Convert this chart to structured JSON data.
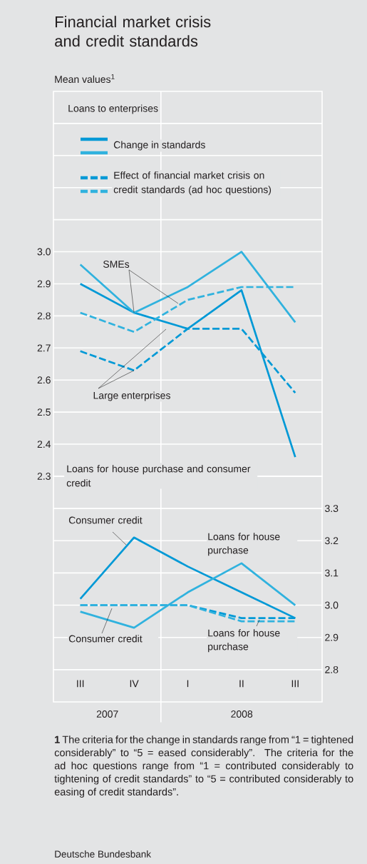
{
  "chart_data": [
    {
      "type": "line",
      "title": "Financial market crisis and credit standards",
      "ylabel": "Mean values$^{1}$",
      "subtitle": "Loans to enterprises",
      "categories": [
        "III",
        "IV",
        "I",
        "II",
        "III"
      ],
      "series": [
        {
          "name": "Change in standards",
          "color": "#0099d6",
          "line_style": "solid",
          "values": [
            2.9,
            2.81,
            2.76,
            2.88,
            2.36
          ]
        },
        {
          "color": "#30b2de",
          "line_style": "solid",
          "values": [
            2.96,
            2.81,
            2.89,
            3.0,
            2.78
          ]
        },
        {
          "name": "Effect of financial market crisis on credit standards (ad hoc questions)",
          "color": "#0099d6",
          "line_style": "dashed",
          "values": [
            2.69,
            2.63,
            2.76,
            2.76,
            2.56
          ]
        },
        {
          "color": "#30b2de",
          "line_style": "dashed",
          "values": [
            2.81,
            2.75,
            2.85,
            2.89,
            2.89
          ]
        }
      ],
      "annotations": [
        {
          "text": "SMEs",
          "x": "IV",
          "y": 2.81
        },
        {
          "text": "Large enterprises",
          "x": "IV",
          "y": 2.63
        }
      ],
      "ylim": [
        2.3,
        3.5
      ],
      "yticks": [
        2.3,
        2.4,
        2.5,
        2.6,
        2.7,
        2.8,
        2.9,
        {
          "value": 3,
          "label": "3.0"
        },
        {
          "value": 3.1,
          "label": null
        },
        {
          "value": 3.2,
          "label": null
        },
        {
          "value": 3.3,
          "label": null
        },
        {
          "value": 3.4,
          "label": null
        }
      ],
      "grid": "y",
      "legend": "top left",
      "tick_labels": "y"
    },
    {
      "type": "line",
      "title": "Loans for house purchase and consumer credit",
      "categories": [
        "III",
        "IV",
        "I",
        "II",
        "III"
      ],
      "series": [
        {
          "name": "Consumer credit",
          "color": "#0099d6",
          "line_style": "solid",
          "values": [
            3.02,
            3.21,
            3.12,
            3.04,
            2.96
          ]
        },
        {
          "name": "Loans for house purchase",
          "color": "#30b2de",
          "line_style": "solid",
          "values": [
            2.98,
            2.93,
            3.04,
            3.13,
            3.0
          ]
        },
        {
          "name": "Consumer credit",
          "color": "#0099d6",
          "line_style": "dashed",
          "values": [
            3.0,
            3.0,
            3.0,
            2.96,
            2.96
          ]
        },
        {
          "name": "Loans for house purchase",
          "color": "#30b2de",
          "line_style": "dashed",
          "values": [
            3.0,
            3.0,
            3.0,
            2.95,
            2.95
          ]
        }
      ],
      "annotations": [
        "2007",
        "2008",
        "**1** The criteria for the change in standards range from “1 = tightened considerably” to “5 = eased considerably”. The criteria for the ad hoc questions range from “1 = contributed considerably to tightening of credit standards” to “5 = contributed considerably to easing of credit standards”.",
        "Deutsche Bundesbank"
      ],
      "ylim": [
        2.7,
        3.4
      ],
      "yticks": [
        2.8,
        2.9,
        {
          "value": 3,
          "label": "3.0"
        },
        3.1,
        3.2,
        3.3
      ],
      "grid": "y"
    }
  ]
}
